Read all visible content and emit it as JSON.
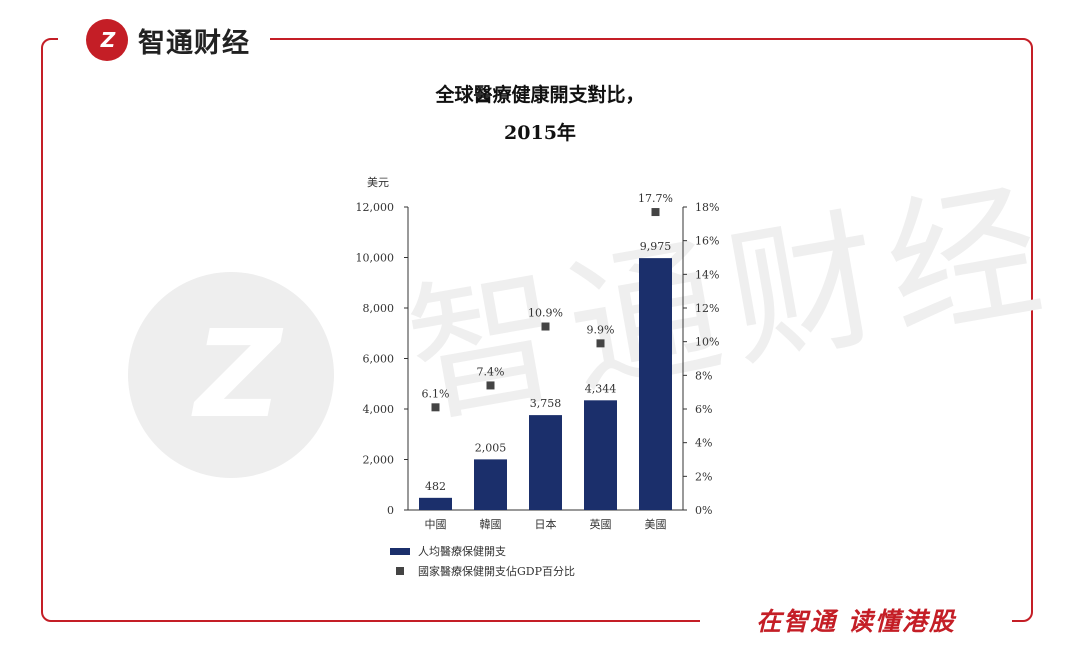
{
  "brand": {
    "logo_text": "Z",
    "name": "智通财经"
  },
  "slogan": "在智通 读懂港股",
  "watermark": {
    "text": "智通财经"
  },
  "colors": {
    "accent": "#c41e26",
    "bar": "#1b2f6b",
    "marker": "#444444"
  },
  "chart_data": {
    "type": "bar",
    "title": "全球醫療健康開支對比，",
    "subtitle": "2015年",
    "left_axis_unit": "美元",
    "categories": [
      "中國",
      "韓國",
      "日本",
      "英國",
      "美國"
    ],
    "series": [
      {
        "name": "人均醫療保健開支",
        "type": "bar",
        "axis": "left",
        "values": [
          482,
          2005,
          3758,
          4344,
          9975
        ],
        "labels": [
          "482",
          "2,005",
          "3,758",
          "4,344",
          "9,975"
        ]
      },
      {
        "name": "國家醫療保健開支佔GDP百分比",
        "type": "scatter",
        "axis": "right",
        "values": [
          6.1,
          7.4,
          10.9,
          9.9,
          17.7
        ],
        "labels": [
          "6.1%",
          "7.4%",
          "10.9%",
          "9.9%",
          "17.7%"
        ]
      }
    ],
    "ylim": [
      0,
      12000
    ],
    "y_ticks": [
      "0",
      "2,000",
      "4,000",
      "6,000",
      "8,000",
      "10,000",
      "12,000"
    ],
    "y2lim": [
      0,
      18
    ],
    "y2_ticks": [
      "0%",
      "2%",
      "4%",
      "6%",
      "8%",
      "10%",
      "12%",
      "14%",
      "16%",
      "18%"
    ],
    "legend_position": "bottom-left",
    "grid": false
  }
}
